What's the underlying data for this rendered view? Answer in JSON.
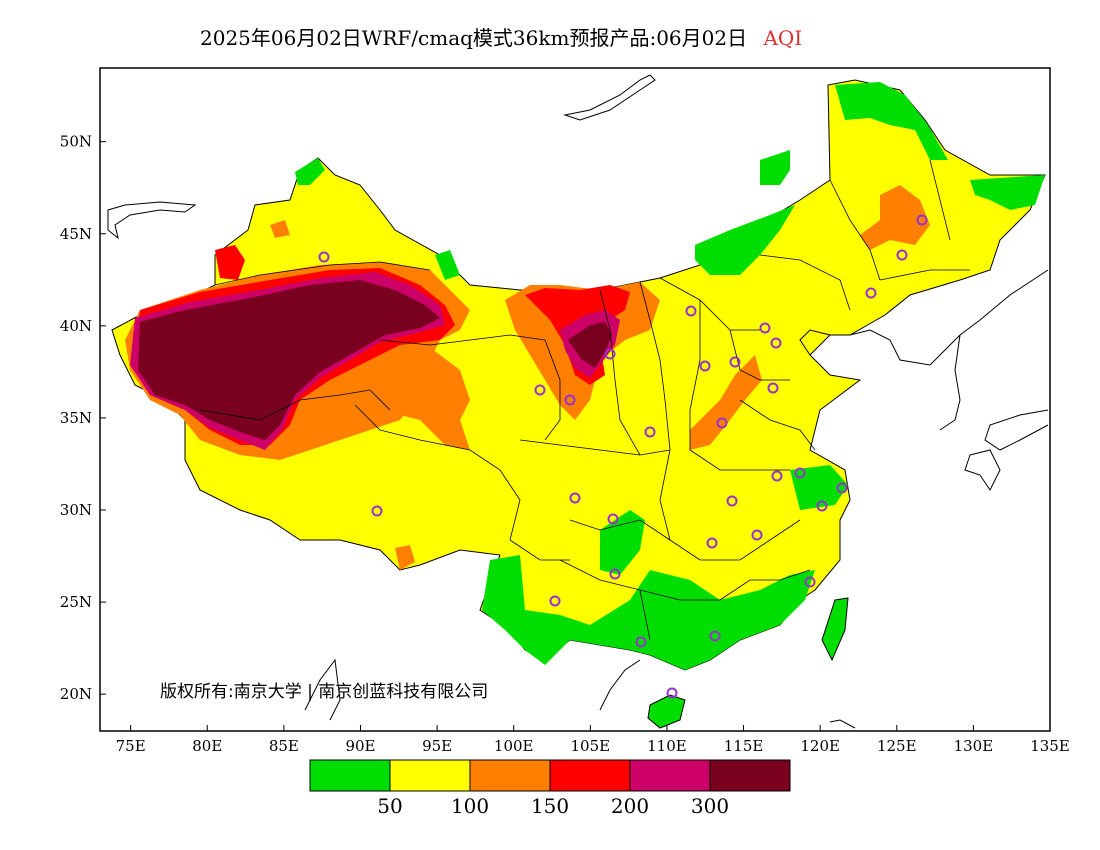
{
  "header": {
    "title": "2025年06月02日WRF/cmaq模式36km预报产品:06月02日",
    "variable": "AQI",
    "variable_color": "#e03030"
  },
  "map": {
    "lon_range": [
      73,
      135
    ],
    "lat_range": [
      18,
      54
    ],
    "x_ticks": [
      "75E",
      "80E",
      "85E",
      "90E",
      "95E",
      "100E",
      "105E",
      "110E",
      "115E",
      "120E",
      "125E",
      "130E",
      "135E"
    ],
    "y_ticks": [
      "50N",
      "45N",
      "40N",
      "35N",
      "30N",
      "25N",
      "20N"
    ],
    "copyright": "版权所有:南京大学 | 南京创蓝科技有限公司"
  },
  "legend": {
    "colors": [
      "#00dd00",
      "#ffff00",
      "#ff8000",
      "#ff0000",
      "#cc0066",
      "#7a0020"
    ],
    "labels": [
      "50",
      "100",
      "150",
      "200",
      "300"
    ]
  }
}
